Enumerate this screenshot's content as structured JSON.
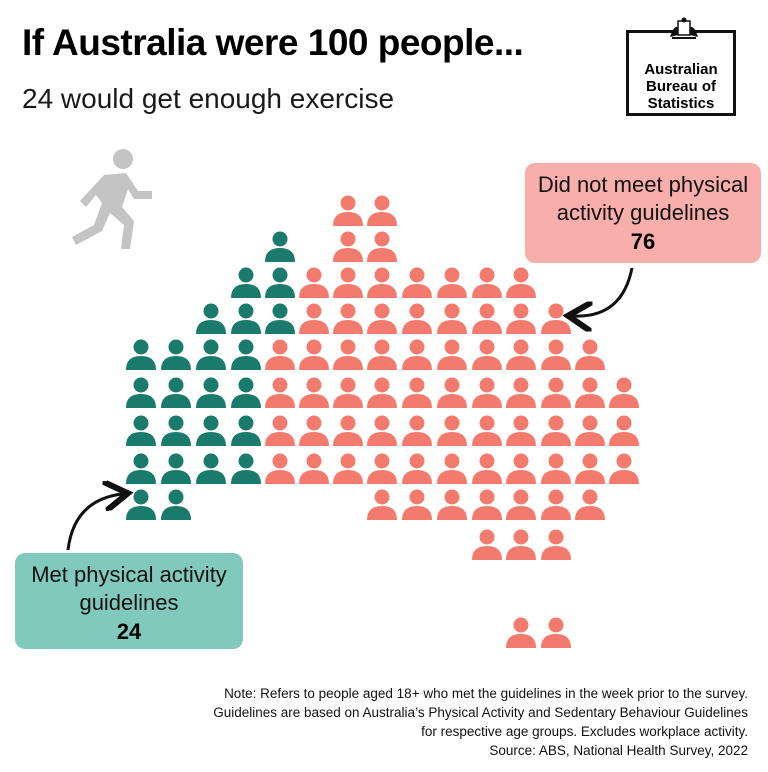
{
  "header": {
    "title": "If Australia were 100 people...",
    "subtitle": "24 would get enough exercise"
  },
  "logo": {
    "text": "Australian Bureau of Statistics"
  },
  "callouts": {
    "not_met": {
      "label": "Did not meet physical activity guidelines",
      "value": "76"
    },
    "met": {
      "label": "Met physical activity guidelines",
      "value": "24"
    }
  },
  "note": {
    "line1": "Note: Refers to people aged 18+ who met the guidelines in the week prior to the survey.",
    "line2": "Guidelines are based on Australia’s Physical Activity and Sedentary Behaviour Guidelines",
    "line3": "for respective age groups. Excludes workplace activity.",
    "line4": "Source: ABS, National Health Survey, 2022"
  },
  "colors": {
    "met": "#1a7a6b",
    "not_met": "#f37b6e",
    "runner": "#c4c4c4"
  },
  "chart_data": {
    "type": "pictogram",
    "total": 100,
    "series": [
      {
        "name": "Met physical activity guidelines",
        "value": 24
      },
      {
        "name": "Did not meet physical activity guidelines",
        "value": 76
      }
    ]
  }
}
